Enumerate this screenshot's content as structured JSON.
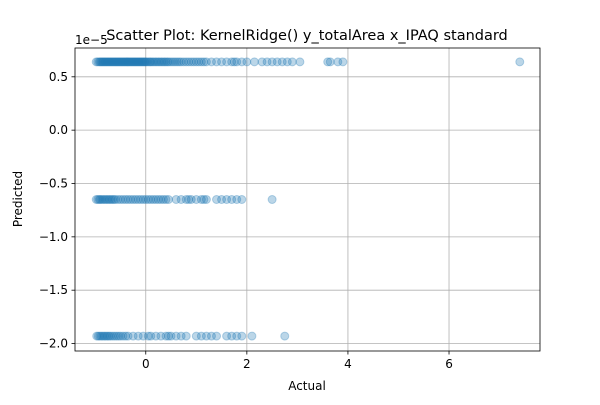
{
  "chart_data": {
    "type": "scatter",
    "title": "Scatter Plot: KernelRidge() y_totalArea x_IPAQ standard",
    "xlabel": "Actual",
    "ylabel": "Predicted",
    "y_offset_label": "1e−5",
    "xlim": [
      -1.4,
      7.8
    ],
    "ylim": [
      -2.07,
      0.77
    ],
    "y_scale_factor": 1e-05,
    "x_ticks": [
      0,
      2,
      4,
      6
    ],
    "x_tick_labels": [
      "0",
      "2",
      "4",
      "6"
    ],
    "y_ticks": [
      0.5,
      0.0,
      -0.5,
      -1.0,
      -1.5,
      -2.0
    ],
    "y_tick_labels": [
      "0.5",
      "0.0",
      "−0.5",
      "−1.0",
      "−1.5",
      "−2.0"
    ],
    "grid": true,
    "marker_color": "#1f77b4",
    "marker_alpha": 0.3,
    "series": [
      {
        "points": [
          [
            -0.98,
            0.64
          ],
          [
            -0.95,
            0.64
          ],
          [
            -0.92,
            0.64
          ],
          [
            -0.9,
            0.64
          ],
          [
            -0.88,
            0.64
          ],
          [
            -0.86,
            0.64
          ],
          [
            -0.84,
            0.64
          ],
          [
            -0.82,
            0.64
          ],
          [
            -0.8,
            0.64
          ],
          [
            -0.78,
            0.64
          ],
          [
            -0.76,
            0.64
          ],
          [
            -0.74,
            0.64
          ],
          [
            -0.72,
            0.64
          ],
          [
            -0.7,
            0.64
          ],
          [
            -0.68,
            0.64
          ],
          [
            -0.66,
            0.64
          ],
          [
            -0.64,
            0.64
          ],
          [
            -0.62,
            0.64
          ],
          [
            -0.6,
            0.64
          ],
          [
            -0.58,
            0.64
          ],
          [
            -0.56,
            0.64
          ],
          [
            -0.54,
            0.64
          ],
          [
            -0.52,
            0.64
          ],
          [
            -0.5,
            0.64
          ],
          [
            -0.48,
            0.64
          ],
          [
            -0.46,
            0.64
          ],
          [
            -0.44,
            0.64
          ],
          [
            -0.42,
            0.64
          ],
          [
            -0.4,
            0.64
          ],
          [
            -0.38,
            0.64
          ],
          [
            -0.36,
            0.64
          ],
          [
            -0.34,
            0.64
          ],
          [
            -0.32,
            0.64
          ],
          [
            -0.3,
            0.64
          ],
          [
            -0.28,
            0.64
          ],
          [
            -0.26,
            0.64
          ],
          [
            -0.24,
            0.64
          ],
          [
            -0.22,
            0.64
          ],
          [
            -0.2,
            0.64
          ],
          [
            -0.18,
            0.64
          ],
          [
            -0.16,
            0.64
          ],
          [
            -0.14,
            0.64
          ],
          [
            -0.12,
            0.64
          ],
          [
            -0.1,
            0.64
          ],
          [
            -0.08,
            0.64
          ],
          [
            -0.06,
            0.64
          ],
          [
            -0.04,
            0.64
          ],
          [
            -0.02,
            0.64
          ],
          [
            0.0,
            0.64
          ],
          [
            0.02,
            0.64
          ],
          [
            0.05,
            0.64
          ],
          [
            0.08,
            0.64
          ],
          [
            0.1,
            0.64
          ],
          [
            0.13,
            0.64
          ],
          [
            0.16,
            0.64
          ],
          [
            0.19,
            0.64
          ],
          [
            0.22,
            0.64
          ],
          [
            0.25,
            0.64
          ],
          [
            0.28,
            0.64
          ],
          [
            0.31,
            0.64
          ],
          [
            0.34,
            0.64
          ],
          [
            0.37,
            0.64
          ],
          [
            0.4,
            0.64
          ],
          [
            0.43,
            0.64
          ],
          [
            0.46,
            0.64
          ],
          [
            0.5,
            0.64
          ],
          [
            0.54,
            0.64
          ],
          [
            0.58,
            0.64
          ],
          [
            0.62,
            0.64
          ],
          [
            0.66,
            0.64
          ],
          [
            0.7,
            0.64
          ],
          [
            0.75,
            0.64
          ],
          [
            0.8,
            0.64
          ],
          [
            0.85,
            0.64
          ],
          [
            0.9,
            0.64
          ],
          [
            0.95,
            0.64
          ],
          [
            1.0,
            0.64
          ],
          [
            1.05,
            0.64
          ],
          [
            1.1,
            0.64
          ],
          [
            1.15,
            0.64
          ],
          [
            1.2,
            0.64
          ],
          [
            1.3,
            0.64
          ],
          [
            1.4,
            0.64
          ],
          [
            1.5,
            0.64
          ],
          [
            1.6,
            0.64
          ],
          [
            1.7,
            0.64
          ],
          [
            1.75,
            0.64
          ],
          [
            1.8,
            0.64
          ],
          [
            1.9,
            0.64
          ],
          [
            2.0,
            0.64
          ],
          [
            2.15,
            0.64
          ],
          [
            2.3,
            0.64
          ],
          [
            2.4,
            0.64
          ],
          [
            2.5,
            0.64
          ],
          [
            2.6,
            0.64
          ],
          [
            2.7,
            0.64
          ],
          [
            2.8,
            0.64
          ],
          [
            2.9,
            0.64
          ],
          [
            3.05,
            0.64
          ],
          [
            3.6,
            0.64
          ],
          [
            3.65,
            0.64
          ],
          [
            3.8,
            0.64
          ],
          [
            3.9,
            0.64
          ],
          [
            7.4,
            0.64
          ],
          [
            -0.98,
            -0.65
          ],
          [
            -0.95,
            -0.65
          ],
          [
            -0.92,
            -0.65
          ],
          [
            -0.9,
            -0.65
          ],
          [
            -0.87,
            -0.65
          ],
          [
            -0.84,
            -0.65
          ],
          [
            -0.81,
            -0.65
          ],
          [
            -0.78,
            -0.65
          ],
          [
            -0.75,
            -0.65
          ],
          [
            -0.72,
            -0.65
          ],
          [
            -0.69,
            -0.65
          ],
          [
            -0.66,
            -0.65
          ],
          [
            -0.63,
            -0.65
          ],
          [
            -0.6,
            -0.65
          ],
          [
            -0.55,
            -0.65
          ],
          [
            -0.5,
            -0.65
          ],
          [
            -0.45,
            -0.65
          ],
          [
            -0.4,
            -0.65
          ],
          [
            -0.35,
            -0.65
          ],
          [
            -0.3,
            -0.65
          ],
          [
            -0.25,
            -0.65
          ],
          [
            -0.2,
            -0.65
          ],
          [
            -0.15,
            -0.65
          ],
          [
            -0.1,
            -0.65
          ],
          [
            -0.05,
            -0.65
          ],
          [
            0.0,
            -0.65
          ],
          [
            0.05,
            -0.65
          ],
          [
            0.1,
            -0.65
          ],
          [
            0.15,
            -0.65
          ],
          [
            0.2,
            -0.65
          ],
          [
            0.25,
            -0.65
          ],
          [
            0.3,
            -0.65
          ],
          [
            0.35,
            -0.65
          ],
          [
            0.4,
            -0.65
          ],
          [
            0.45,
            -0.65
          ],
          [
            0.6,
            -0.65
          ],
          [
            0.7,
            -0.65
          ],
          [
            0.8,
            -0.65
          ],
          [
            0.85,
            -0.65
          ],
          [
            0.9,
            -0.65
          ],
          [
            1.0,
            -0.65
          ],
          [
            1.1,
            -0.65
          ],
          [
            1.15,
            -0.65
          ],
          [
            1.2,
            -0.65
          ],
          [
            1.4,
            -0.65
          ],
          [
            1.5,
            -0.65
          ],
          [
            1.6,
            -0.65
          ],
          [
            1.7,
            -0.65
          ],
          [
            1.8,
            -0.65
          ],
          [
            1.9,
            -0.65
          ],
          [
            2.5,
            -0.65
          ],
          [
            -0.97,
            -1.93
          ],
          [
            -0.94,
            -1.93
          ],
          [
            -0.91,
            -1.93
          ],
          [
            -0.88,
            -1.93
          ],
          [
            -0.85,
            -1.93
          ],
          [
            -0.82,
            -1.93
          ],
          [
            -0.79,
            -1.93
          ],
          [
            -0.76,
            -1.93
          ],
          [
            -0.73,
            -1.93
          ],
          [
            -0.7,
            -1.93
          ],
          [
            -0.66,
            -1.93
          ],
          [
            -0.62,
            -1.93
          ],
          [
            -0.58,
            -1.93
          ],
          [
            -0.54,
            -1.93
          ],
          [
            -0.5,
            -1.93
          ],
          [
            -0.45,
            -1.93
          ],
          [
            -0.4,
            -1.93
          ],
          [
            -0.35,
            -1.93
          ],
          [
            -0.25,
            -1.93
          ],
          [
            -0.15,
            -1.93
          ],
          [
            -0.05,
            -1.93
          ],
          [
            0.05,
            -1.93
          ],
          [
            0.1,
            -1.93
          ],
          [
            0.2,
            -1.93
          ],
          [
            0.3,
            -1.93
          ],
          [
            0.4,
            -1.93
          ],
          [
            0.45,
            -1.93
          ],
          [
            0.5,
            -1.93
          ],
          [
            0.6,
            -1.93
          ],
          [
            0.7,
            -1.93
          ],
          [
            0.8,
            -1.93
          ],
          [
            1.0,
            -1.93
          ],
          [
            1.1,
            -1.93
          ],
          [
            1.2,
            -1.93
          ],
          [
            1.3,
            -1.93
          ],
          [
            1.4,
            -1.93
          ],
          [
            1.6,
            -1.93
          ],
          [
            1.7,
            -1.93
          ],
          [
            1.8,
            -1.93
          ],
          [
            1.9,
            -1.93
          ],
          [
            2.1,
            -1.93
          ],
          [
            2.75,
            -1.93
          ]
        ]
      }
    ]
  }
}
